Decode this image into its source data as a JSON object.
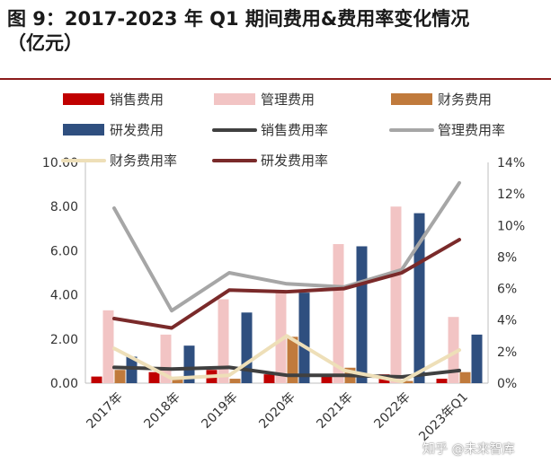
{
  "title_line1": "图 9：2017-2023 年 Q1 期间费用&费用率变化情况",
  "title_line2": "（亿元）",
  "watermark": "知乎 @未来智库",
  "colors": {
    "sales": "#c00000",
    "mgmt": "#f2c4c4",
    "finance": "#c07a3c",
    "rnd": "#2f4f7f",
    "sales_rate": "#404040",
    "mgmt_rate": "#a6a6a6",
    "finance_rate": "#eedfb8",
    "rnd_rate": "#7a2a2a"
  },
  "chart_data": {
    "type": "bar",
    "categories": [
      "2017年",
      "2018年",
      "2019年",
      "2020年",
      "2021年",
      "2022年",
      "2023年Q1"
    ],
    "ylim": [
      0,
      10
    ],
    "yticks": [
      "0.00",
      "2.00",
      "4.00",
      "6.00",
      "8.00",
      "10.00"
    ],
    "y2lim": [
      0,
      14
    ],
    "y2ticks": [
      "0%",
      "2%",
      "4%",
      "6%",
      "8%",
      "10%",
      "12%",
      "14%"
    ],
    "series": [
      {
        "name": "销售费用",
        "kind": "bar",
        "color_key": "sales",
        "values": [
          0.3,
          0.5,
          0.6,
          0.4,
          0.4,
          0.4,
          0.2
        ]
      },
      {
        "name": "管理费用",
        "kind": "bar",
        "color_key": "mgmt",
        "values": [
          3.3,
          2.2,
          3.8,
          4.2,
          6.3,
          8.0,
          3.0
        ]
      },
      {
        "name": "财务费用",
        "kind": "bar",
        "color_key": "finance",
        "values": [
          0.6,
          0.2,
          0.2,
          2.1,
          0.7,
          0.1,
          0.5
        ]
      },
      {
        "name": "研发费用",
        "kind": "bar",
        "color_key": "rnd",
        "values": [
          1.2,
          1.7,
          3.2,
          4.1,
          6.2,
          7.7,
          2.2
        ]
      },
      {
        "name": "销售费用率",
        "kind": "line",
        "color_key": "sales_rate",
        "values": [
          1.0,
          0.9,
          1.0,
          0.5,
          0.5,
          0.4,
          0.8
        ]
      },
      {
        "name": "管理费用率",
        "kind": "line",
        "color_key": "mgmt_rate",
        "values": [
          11.1,
          4.6,
          7.0,
          6.3,
          6.1,
          7.2,
          12.7
        ]
      },
      {
        "name": "财务费用率",
        "kind": "line",
        "color_key": "finance_rate",
        "values": [
          2.2,
          0.3,
          0.5,
          3.0,
          0.8,
          0.1,
          2.1
        ]
      },
      {
        "name": "研发费用率",
        "kind": "line",
        "color_key": "rnd_rate",
        "values": [
          4.1,
          3.5,
          5.9,
          5.8,
          6.0,
          7.0,
          9.1
        ]
      }
    ]
  }
}
